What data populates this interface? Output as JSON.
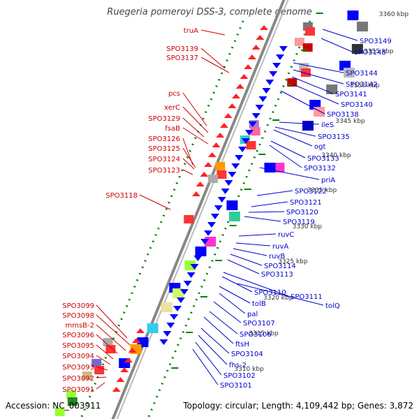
{
  "title": "Ruegeria pomeroyi DSS-3, complete genome",
  "accession": "Accession: NC_003911",
  "topology": "Topology: circular; Length: 4,109,442 bp; Genes: 3,872",
  "colors": {
    "left_label": "#cc0000",
    "right_label": "#0000cc",
    "tick": "#008000",
    "backbone": "#888888"
  },
  "ticks": [
    "3360 kbp",
    "3355 kbp",
    "3350 kbp",
    "3345 kbp",
    "3340 kbp",
    "3335 kbp",
    "3330 kbp",
    "3325 kbp",
    "3320 kbp",
    "3315 kbp",
    "3310 kbp"
  ],
  "left_labels": [
    "truA",
    "SPO3139",
    "SPO3137",
    "pcs",
    "xerC",
    "SPO3129",
    "fsaB",
    "SPO3126",
    "SPO3125",
    "SPO3124",
    "SPO3123",
    "SPO3118",
    "SPO3099",
    "SPO3098",
    "mmsB-2",
    "SPO3096",
    "SPO3095",
    "SPO3094",
    "SPO3093",
    "SPO3092",
    "SPO3091"
  ],
  "right_labels": [
    "SPO3149",
    "SPO3148",
    "SPO3144",
    "SPO3142",
    "SPO3141",
    "SPO3140",
    "SPO3138",
    "ileS",
    "SPO3135",
    "ogt",
    "SPO3133",
    "SPO3132",
    "priA",
    "SPO3122",
    "SPO3121",
    "SPO3120",
    "SPO3119",
    "ruvC",
    "ruvA",
    "ruvB",
    "SPO3114",
    "SPO3113",
    "SPO3110",
    "SPO3111",
    "tolB",
    "tolQ",
    "pal",
    "SPO3107",
    "SPO3106",
    "ftsH",
    "SPO3104",
    "fhs-2",
    "SPO3102",
    "SPO3101"
  ]
}
